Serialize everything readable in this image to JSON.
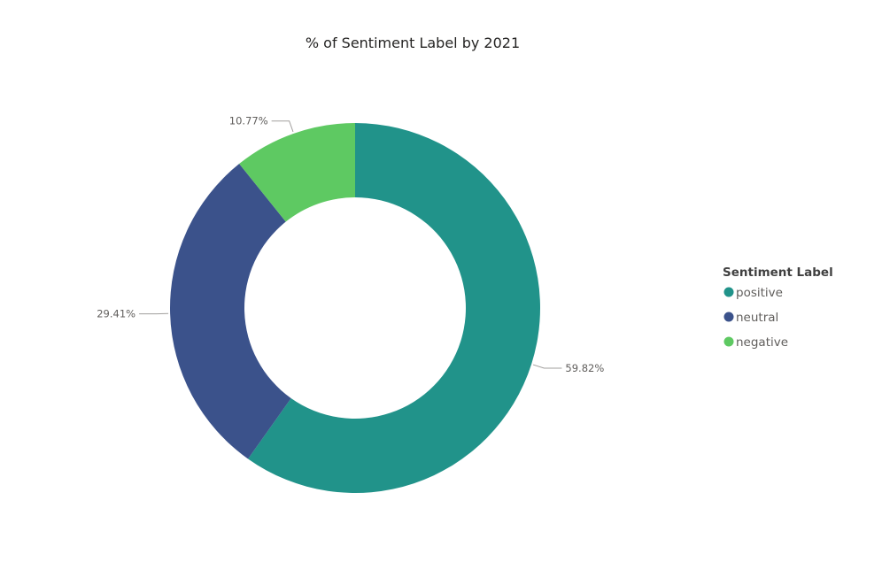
{
  "chart_data": {
    "type": "pie",
    "variant": "donut",
    "title": "% of Sentiment Label by 2021",
    "legend": {
      "title": "Sentiment Label",
      "placement": "right"
    },
    "categories": [
      "positive",
      "neutral",
      "negative"
    ],
    "values": [
      59.82,
      29.41,
      10.77
    ],
    "labels": [
      "59.82%",
      "29.41%",
      "10.77%"
    ],
    "colors": [
      "#21938a",
      "#3b528b",
      "#5ec962"
    ]
  }
}
